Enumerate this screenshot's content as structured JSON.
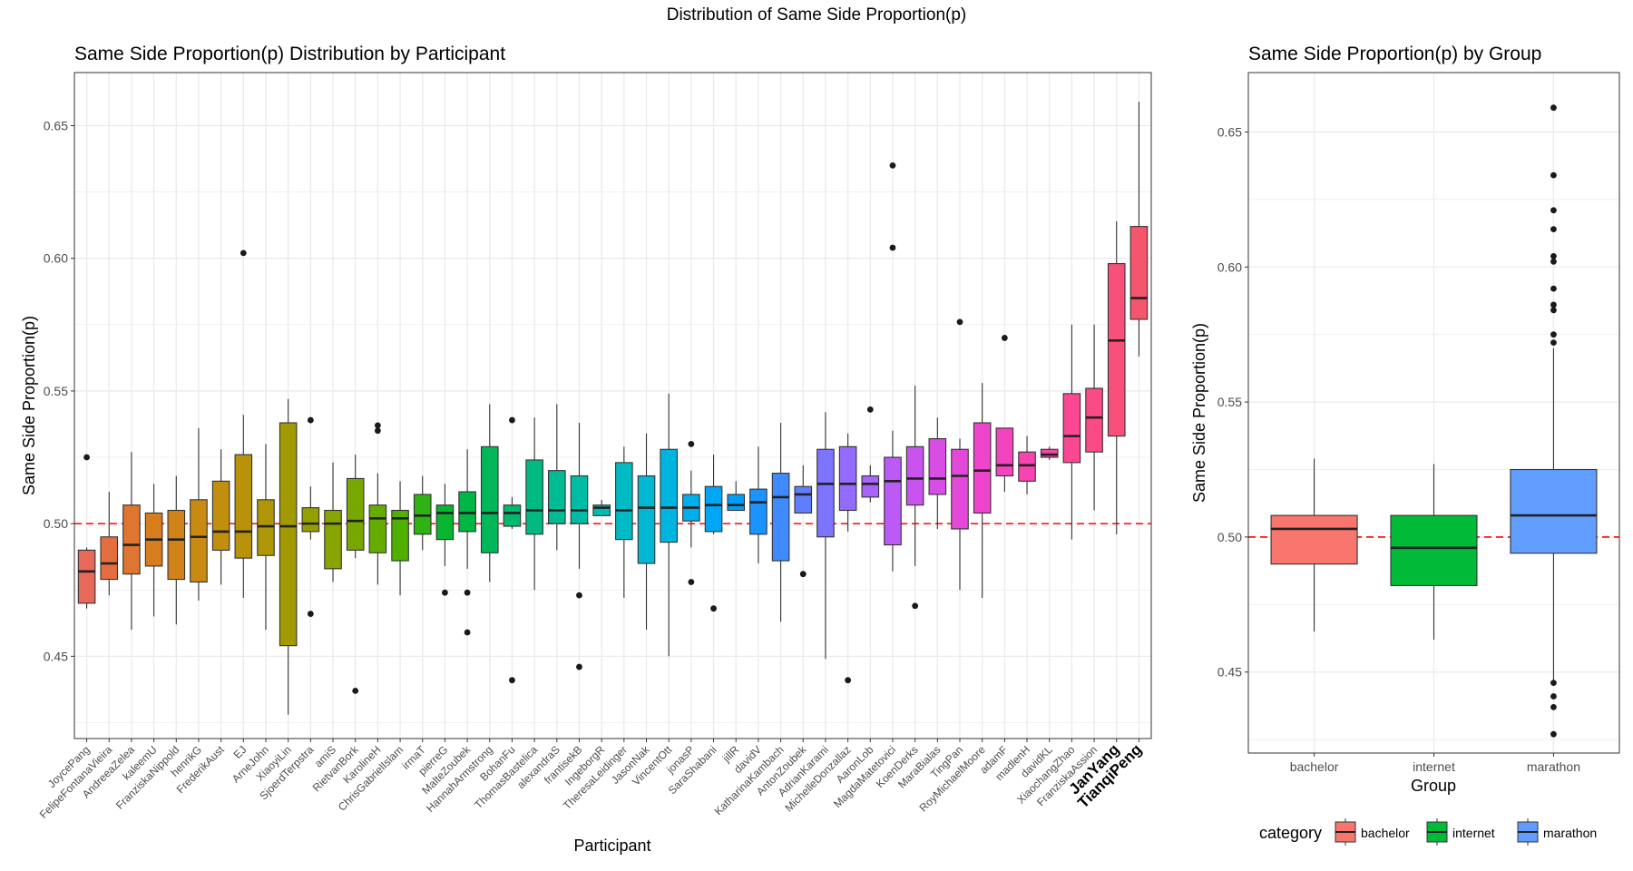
{
  "suptitle": "Distribution of Same Side Proportion(p)",
  "colors": {
    "grid": "#ebebeb",
    "panel_border": "#333333",
    "ref_line": "#ff0000",
    "median": "#222222",
    "point": "#1a1a1a"
  },
  "chart_data": [
    {
      "type": "boxplot",
      "title": "Same Side Proportion(p) Distribution by Participant",
      "xlabel": "Participant",
      "ylabel": "Same Side Proportion(p)",
      "ylim": [
        0.419,
        0.67
      ],
      "yticks": [
        0.45,
        0.5,
        0.55,
        0.6,
        0.65
      ],
      "reference_line": 0.5,
      "highlighted_labels": [
        "JanYang",
        "TianqiPeng"
      ],
      "boxes": [
        {
          "label": "JoycePang",
          "color": "#E8685A",
          "whislo": 0.468,
          "q1": 0.47,
          "med": 0.482,
          "q3": 0.49,
          "whishi": 0.491,
          "outliers": [
            0.525
          ]
        },
        {
          "label": "FelipeFontanaVieira",
          "color": "#E46E40",
          "whislo": 0.473,
          "q1": 0.479,
          "med": 0.485,
          "q3": 0.495,
          "whishi": 0.512,
          "outliers": []
        },
        {
          "label": "AndreeaZelea",
          "color": "#DE7530",
          "whislo": 0.46,
          "q1": 0.481,
          "med": 0.492,
          "q3": 0.507,
          "whishi": 0.527,
          "outliers": []
        },
        {
          "label": "kaleemU",
          "color": "#D87D1E",
          "whislo": 0.465,
          "q1": 0.484,
          "med": 0.494,
          "q3": 0.504,
          "whishi": 0.515,
          "outliers": []
        },
        {
          "label": "FranziskaNippold",
          "color": "#D1831A",
          "whislo": 0.462,
          "q1": 0.479,
          "med": 0.494,
          "q3": 0.505,
          "whishi": 0.518,
          "outliers": []
        },
        {
          "label": "henrikG",
          "color": "#C98A12",
          "whislo": 0.471,
          "q1": 0.478,
          "med": 0.495,
          "q3": 0.509,
          "whishi": 0.536,
          "outliers": []
        },
        {
          "label": "FrederikAust",
          "color": "#C18E0E",
          "whislo": 0.477,
          "q1": 0.49,
          "med": 0.497,
          "q3": 0.516,
          "whishi": 0.528,
          "outliers": []
        },
        {
          "label": "EJ",
          "color": "#B8920A",
          "whislo": 0.472,
          "q1": 0.487,
          "med": 0.497,
          "q3": 0.526,
          "whishi": 0.541,
          "outliers": [
            0.602
          ]
        },
        {
          "label": "ArneJohn",
          "color": "#AE9606",
          "whislo": 0.46,
          "q1": 0.488,
          "med": 0.499,
          "q3": 0.509,
          "whishi": 0.53,
          "outliers": []
        },
        {
          "label": "XiaoyiLin",
          "color": "#A39A02",
          "whislo": 0.428,
          "q1": 0.454,
          "med": 0.499,
          "q3": 0.538,
          "whishi": 0.547,
          "outliers": []
        },
        {
          "label": "SjoerdTerpstra",
          "color": "#969F00",
          "whislo": 0.494,
          "q1": 0.497,
          "med": 0.5,
          "q3": 0.506,
          "whishi": 0.514,
          "outliers": [
            0.539,
            0.466
          ]
        },
        {
          "label": "amiS",
          "color": "#88A400",
          "whislo": 0.478,
          "q1": 0.483,
          "med": 0.5,
          "q3": 0.505,
          "whishi": 0.523,
          "outliers": []
        },
        {
          "label": "RietvanBork",
          "color": "#78A800",
          "whislo": 0.487,
          "q1": 0.49,
          "med": 0.501,
          "q3": 0.517,
          "whishi": 0.526,
          "outliers": [
            0.437
          ]
        },
        {
          "label": "KarolineH",
          "color": "#66AC00",
          "whislo": 0.477,
          "q1": 0.489,
          "med": 0.502,
          "q3": 0.507,
          "whishi": 0.519,
          "outliers": [
            0.537,
            0.535
          ]
        },
        {
          "label": "ChrisGabrielIslam",
          "color": "#4FB000",
          "whislo": 0.473,
          "q1": 0.486,
          "med": 0.502,
          "q3": 0.505,
          "whishi": 0.516,
          "outliers": []
        },
        {
          "label": "irmaT",
          "color": "#2EB312",
          "whislo": 0.49,
          "q1": 0.496,
          "med": 0.503,
          "q3": 0.511,
          "whishi": 0.518,
          "outliers": []
        },
        {
          "label": "pierreG",
          "color": "#08B52E",
          "whislo": 0.484,
          "q1": 0.494,
          "med": 0.504,
          "q3": 0.507,
          "whishi": 0.515,
          "outliers": [
            0.474
          ]
        },
        {
          "label": "MalteZoubek",
          "color": "#00B644",
          "whislo": 0.483,
          "q1": 0.497,
          "med": 0.504,
          "q3": 0.512,
          "whishi": 0.528,
          "outliers": [
            0.474,
            0.459
          ]
        },
        {
          "label": "HannahArmstrong",
          "color": "#00B85A",
          "whislo": 0.478,
          "q1": 0.489,
          "med": 0.504,
          "q3": 0.529,
          "whishi": 0.545,
          "outliers": []
        },
        {
          "label": "BohanFu",
          "color": "#00B96E",
          "whislo": 0.498,
          "q1": 0.499,
          "med": 0.504,
          "q3": 0.507,
          "whishi": 0.51,
          "outliers": [
            0.539,
            0.441
          ]
        },
        {
          "label": "ThomasBastelica",
          "color": "#00BA82",
          "whislo": 0.475,
          "q1": 0.496,
          "med": 0.505,
          "q3": 0.524,
          "whishi": 0.54,
          "outliers": []
        },
        {
          "label": "alexandraS",
          "color": "#00BB93",
          "whislo": 0.49,
          "q1": 0.5,
          "med": 0.505,
          "q3": 0.52,
          "whishi": 0.545,
          "outliers": []
        },
        {
          "label": "frantisekB",
          "color": "#00BCA4",
          "whislo": 0.483,
          "q1": 0.5,
          "med": 0.505,
          "q3": 0.518,
          "whishi": 0.538,
          "outliers": [
            0.473,
            0.446
          ]
        },
        {
          "label": "IngeborgR",
          "color": "#00BCB4",
          "whislo": 0.503,
          "q1": 0.503,
          "med": 0.506,
          "q3": 0.507,
          "whishi": 0.509,
          "outliers": []
        },
        {
          "label": "TheresaLeidinger",
          "color": "#00BBC4",
          "whislo": 0.472,
          "q1": 0.494,
          "med": 0.505,
          "q3": 0.523,
          "whishi": 0.529,
          "outliers": []
        },
        {
          "label": "JasonNak",
          "color": "#00B8D2",
          "whislo": 0.46,
          "q1": 0.485,
          "med": 0.506,
          "q3": 0.518,
          "whishi": 0.534,
          "outliers": []
        },
        {
          "label": "VincentOtt",
          "color": "#00B4E0",
          "whislo": 0.45,
          "q1": 0.493,
          "med": 0.506,
          "q3": 0.528,
          "whishi": 0.549,
          "outliers": []
        },
        {
          "label": "jonasP",
          "color": "#00AEEB",
          "whislo": 0.491,
          "q1": 0.501,
          "med": 0.506,
          "q3": 0.511,
          "whishi": 0.52,
          "outliers": [
            0.53,
            0.478
          ]
        },
        {
          "label": "SaraShabani",
          "color": "#00A7F4",
          "whislo": 0.496,
          "q1": 0.497,
          "med": 0.507,
          "q3": 0.514,
          "whishi": 0.526,
          "outliers": [
            0.468
          ]
        },
        {
          "label": "jillR",
          "color": "#009EFA",
          "whislo": 0.505,
          "q1": 0.505,
          "med": 0.507,
          "q3": 0.511,
          "whishi": 0.516,
          "outliers": []
        },
        {
          "label": "davidV",
          "color": "#1C94FF",
          "whislo": 0.485,
          "q1": 0.496,
          "med": 0.508,
          "q3": 0.513,
          "whishi": 0.529,
          "outliers": []
        },
        {
          "label": "KatharinaKambach",
          "color": "#3F8AFF",
          "whislo": 0.463,
          "q1": 0.486,
          "med": 0.51,
          "q3": 0.519,
          "whishi": 0.538,
          "outliers": []
        },
        {
          "label": "AntonZoubek",
          "color": "#607FFF",
          "whislo": 0.504,
          "q1": 0.504,
          "med": 0.511,
          "q3": 0.514,
          "whishi": 0.522,
          "outliers": [
            0.481
          ]
        },
        {
          "label": "AdrianKarami",
          "color": "#7D75FF",
          "whislo": 0.449,
          "q1": 0.495,
          "med": 0.515,
          "q3": 0.528,
          "whishi": 0.542,
          "outliers": []
        },
        {
          "label": "MichelleDonzallaz",
          "color": "#946BFF",
          "whislo": 0.497,
          "q1": 0.505,
          "med": 0.515,
          "q3": 0.529,
          "whishi": 0.534,
          "outliers": [
            0.441
          ]
        },
        {
          "label": "AaronLob",
          "color": "#A962FA",
          "whislo": 0.508,
          "q1": 0.51,
          "med": 0.515,
          "q3": 0.518,
          "whishi": 0.522,
          "outliers": [
            0.543
          ]
        },
        {
          "label": "MagdaMatetovici",
          "color": "#BB5AF4",
          "whislo": 0.482,
          "q1": 0.492,
          "med": 0.516,
          "q3": 0.525,
          "whishi": 0.535,
          "outliers": [
            0.635,
            0.604
          ]
        },
        {
          "label": "KoenDerks",
          "color": "#CB53ED",
          "whislo": 0.484,
          "q1": 0.507,
          "med": 0.517,
          "q3": 0.529,
          "whishi": 0.552,
          "outliers": [
            0.469
          ]
        },
        {
          "label": "MaraBialas",
          "color": "#D84DE4",
          "whislo": 0.498,
          "q1": 0.511,
          "med": 0.517,
          "q3": 0.532,
          "whishi": 0.54,
          "outliers": []
        },
        {
          "label": "TingPan",
          "color": "#E448D9",
          "whislo": 0.475,
          "q1": 0.498,
          "med": 0.518,
          "q3": 0.528,
          "whishi": 0.532,
          "outliers": [
            0.576
          ]
        },
        {
          "label": "RoyMichaelMoore",
          "color": "#EE45CC",
          "whislo": 0.472,
          "q1": 0.504,
          "med": 0.52,
          "q3": 0.538,
          "whishi": 0.553,
          "outliers": []
        },
        {
          "label": "adamF",
          "color": "#F443BF",
          "whislo": 0.512,
          "q1": 0.518,
          "med": 0.522,
          "q3": 0.536,
          "whishi": 0.536,
          "outliers": [
            0.57
          ]
        },
        {
          "label": "madlenH",
          "color": "#F843B1",
          "whislo": 0.511,
          "q1": 0.516,
          "med": 0.522,
          "q3": 0.527,
          "whishi": 0.533,
          "outliers": []
        },
        {
          "label": "davidKL",
          "color": "#FB44A3",
          "whislo": 0.524,
          "q1": 0.525,
          "med": 0.526,
          "q3": 0.528,
          "whishi": 0.529,
          "outliers": []
        },
        {
          "label": "XiaochangZhao",
          "color": "#FC4795",
          "whislo": 0.494,
          "q1": 0.523,
          "med": 0.533,
          "q3": 0.549,
          "whishi": 0.575,
          "outliers": []
        },
        {
          "label": "FranziskaAssion",
          "color": "#FB4B87",
          "whislo": 0.505,
          "q1": 0.527,
          "med": 0.54,
          "q3": 0.551,
          "whishi": 0.575,
          "outliers": []
        },
        {
          "label": "JanYang",
          "color": "#F9507A",
          "whislo": 0.496,
          "q1": 0.533,
          "med": 0.569,
          "q3": 0.598,
          "whishi": 0.614,
          "outliers": []
        },
        {
          "label": "TianqiPeng",
          "color": "#F5566D",
          "whislo": 0.563,
          "q1": 0.577,
          "med": 0.585,
          "q3": 0.612,
          "whishi": 0.659,
          "outliers": []
        }
      ]
    },
    {
      "type": "boxplot",
      "title": "Same Side Proportion(p) by Group",
      "xlabel": "Group",
      "ylabel": "Same Side Proportion(p)",
      "ylim": [
        0.42,
        0.672
      ],
      "yticks": [
        0.45,
        0.5,
        0.55,
        0.6,
        0.65
      ],
      "reference_line": 0.5,
      "boxes": [
        {
          "label": "bachelor",
          "color": "#F8766D",
          "whislo": 0.465,
          "q1": 0.49,
          "med": 0.503,
          "q3": 0.508,
          "whishi": 0.529,
          "outliers": []
        },
        {
          "label": "internet",
          "color": "#00BA38",
          "whislo": 0.462,
          "q1": 0.482,
          "med": 0.496,
          "q3": 0.508,
          "whishi": 0.527,
          "outliers": []
        },
        {
          "label": "marathon",
          "color": "#619CFF",
          "whislo": 0.446,
          "q1": 0.494,
          "med": 0.508,
          "q3": 0.525,
          "whishi": 0.57,
          "outliers": [
            0.659,
            0.634,
            0.621,
            0.614,
            0.604,
            0.602,
            0.592,
            0.586,
            0.584,
            0.575,
            0.572,
            0.446,
            0.441,
            0.437,
            0.427
          ]
        }
      ],
      "legend": {
        "title": "category",
        "position": "bottom",
        "items": [
          {
            "label": "bachelor",
            "color": "#F8766D"
          },
          {
            "label": "internet",
            "color": "#00BA38"
          },
          {
            "label": "marathon",
            "color": "#619CFF"
          }
        ]
      }
    }
  ]
}
